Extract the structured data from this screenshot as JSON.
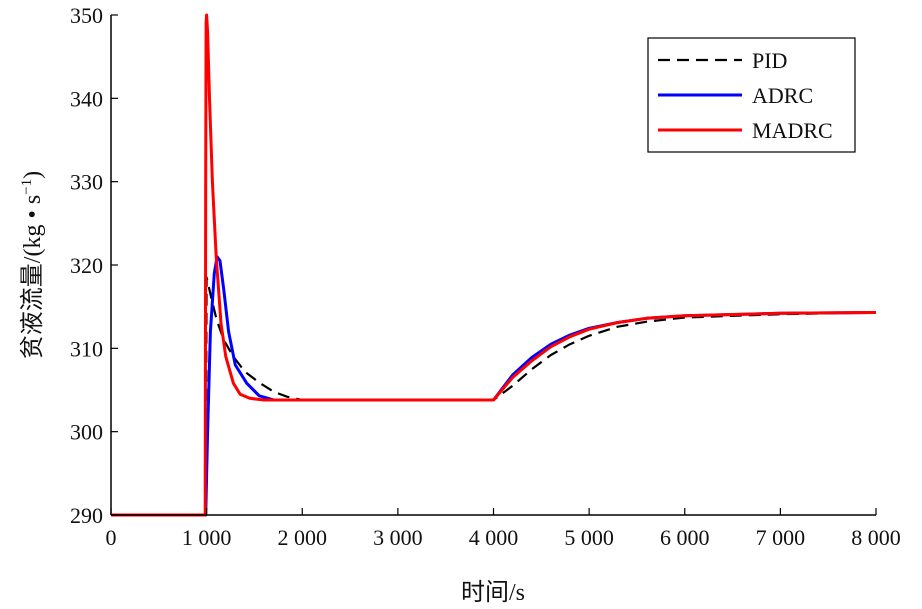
{
  "chart_data": {
    "type": "line",
    "title": "",
    "xlabel": "时间/s",
    "ylabel": "贫液流量/(kg • s",
    "ylabel_sup": "−1",
    "ylabel_close": ")",
    "xlim": [
      0,
      8000
    ],
    "ylim": [
      290,
      350
    ],
    "xticks": [
      0,
      1000,
      2000,
      3000,
      4000,
      5000,
      6000,
      7000,
      8000
    ],
    "xtick_labels": [
      "0",
      "1 000",
      "2 000",
      "3 000",
      "4 000",
      "5 000",
      "6 000",
      "7 000",
      "8 000"
    ],
    "yticks": [
      290,
      300,
      310,
      320,
      330,
      340,
      350
    ],
    "ytick_labels": [
      "290",
      "300",
      "310",
      "320",
      "330",
      "340",
      "350"
    ],
    "grid": false,
    "legend_position": "top-right",
    "series": [
      {
        "name": "PID",
        "color": "#000000",
        "style": "dashed",
        "points": [
          [
            0,
            290
          ],
          [
            990,
            290
          ],
          [
            1000,
            318.5
          ],
          [
            1050,
            316
          ],
          [
            1105,
            313.4
          ],
          [
            1180,
            311
          ],
          [
            1280,
            309
          ],
          [
            1400,
            307.2
          ],
          [
            1560,
            305.8
          ],
          [
            1700,
            304.8
          ],
          [
            1840,
            304.2
          ],
          [
            2000,
            303.8
          ],
          [
            4000,
            303.8
          ],
          [
            4200,
            305.5
          ],
          [
            4400,
            307.5
          ],
          [
            4600,
            309.2
          ],
          [
            4800,
            310.5
          ],
          [
            5000,
            311.5
          ],
          [
            5300,
            312.6
          ],
          [
            5600,
            313.2
          ],
          [
            6000,
            313.7
          ],
          [
            7000,
            314.1
          ],
          [
            8000,
            314.3
          ]
        ]
      },
      {
        "name": "ADRC",
        "color": "#0000ff",
        "style": "solid",
        "points": [
          [
            0,
            290
          ],
          [
            990,
            290
          ],
          [
            1010,
            300
          ],
          [
            1040,
            312
          ],
          [
            1080,
            319
          ],
          [
            1110,
            321
          ],
          [
            1140,
            320.5
          ],
          [
            1180,
            317
          ],
          [
            1230,
            312
          ],
          [
            1300,
            308
          ],
          [
            1420,
            305.8
          ],
          [
            1550,
            304.3
          ],
          [
            1700,
            303.8
          ],
          [
            4000,
            303.8
          ],
          [
            4200,
            306.8
          ],
          [
            4400,
            308.9
          ],
          [
            4600,
            310.5
          ],
          [
            4800,
            311.6
          ],
          [
            5000,
            312.4
          ],
          [
            5300,
            313.1
          ],
          [
            5600,
            313.6
          ],
          [
            6000,
            313.9
          ],
          [
            7000,
            314.2
          ],
          [
            8000,
            314.3
          ]
        ]
      },
      {
        "name": "MADRC",
        "color": "#ff0000",
        "style": "solid",
        "points": [
          [
            0,
            290
          ],
          [
            985,
            290
          ],
          [
            990,
            330
          ],
          [
            995,
            349
          ],
          [
            1000,
            350
          ],
          [
            1010,
            348
          ],
          [
            1030,
            340
          ],
          [
            1060,
            330
          ],
          [
            1100,
            321
          ],
          [
            1150,
            313
          ],
          [
            1200,
            309
          ],
          [
            1280,
            305.8
          ],
          [
            1350,
            304.5
          ],
          [
            1450,
            304
          ],
          [
            1600,
            303.8
          ],
          [
            4000,
            303.8
          ],
          [
            4200,
            306.5
          ],
          [
            4400,
            308.5
          ],
          [
            4600,
            310.2
          ],
          [
            4800,
            311.4
          ],
          [
            5000,
            312.3
          ],
          [
            5300,
            313.1
          ],
          [
            5600,
            313.6
          ],
          [
            6000,
            313.9
          ],
          [
            7000,
            314.2
          ],
          [
            8000,
            314.3
          ]
        ]
      }
    ]
  }
}
